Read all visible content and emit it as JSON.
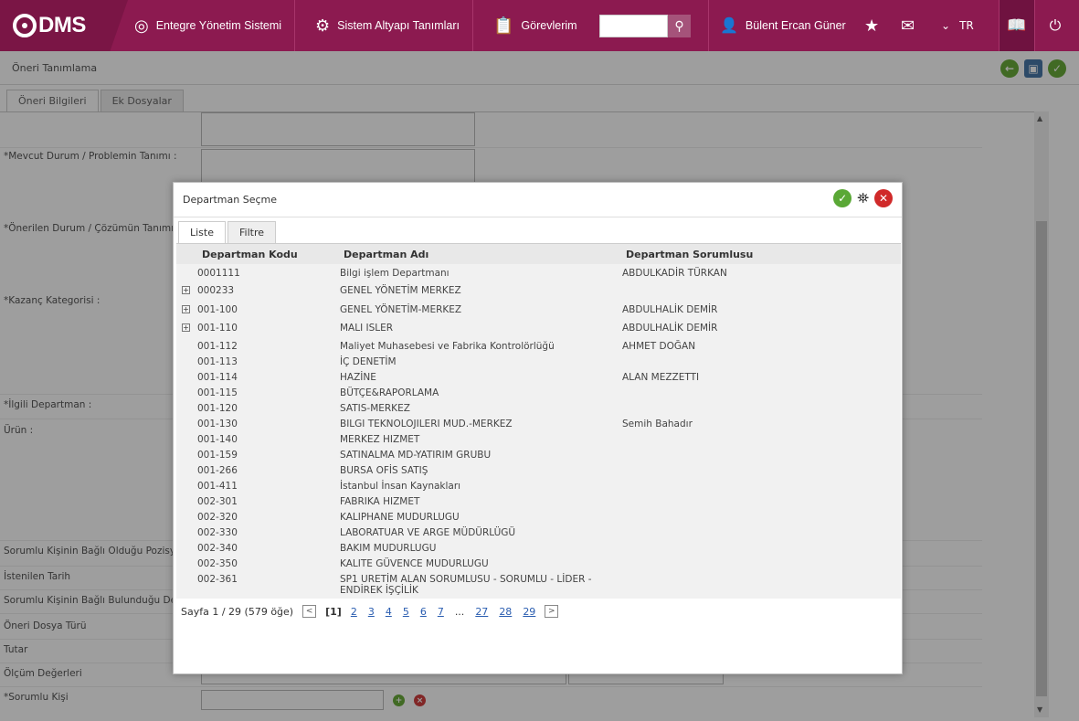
{
  "topbar": {
    "logo_text": "DMS",
    "nav": [
      {
        "label": "Entegre Yönetim Sistemi",
        "icon": "qdms-circle-icon"
      },
      {
        "label": "Sistem Altyapı Tanımları",
        "icon": "gear-icon"
      },
      {
        "label": "Görevlerim",
        "icon": "clipboard-icon"
      }
    ],
    "search_placeholder": "",
    "user_name": "Bülent Ercan Güner",
    "lang": "TR"
  },
  "page": {
    "title": "Öneri Tanımlama",
    "tabs": [
      "Öneri Bilgileri",
      "Ek Dosyalar"
    ],
    "fields": [
      "*Mevcut Durum / Problemin Tanımı :",
      "*Önerilen Durum / Çözümün Tanımı :",
      "*Kazanç Kategorisi :",
      "*İlgili Departman :",
      "Ürün :",
      "Sorumlu Kişinin Bağlı Olduğu Pozisyon",
      "İstenilen Tarih",
      "Sorumlu Kişinin Bağlı Bulunduğu Depa",
      "Öneri Dosya Türü",
      "Tutar",
      "Ölçüm Değerleri",
      "*Sorumlu Kişi"
    ]
  },
  "dialog": {
    "title": "Departman Seçme",
    "tabs": [
      "Liste",
      "Filtre"
    ],
    "columns": [
      "Departman Kodu",
      "Departman Adı",
      "Departman Sorumlusu"
    ],
    "rows": [
      {
        "code": "0001111",
        "name": "Bilgi işlem Departmanı",
        "owner": "ABDULKADİR TÜRKAN",
        "expandable": false
      },
      {
        "code": "000233",
        "name": "GENEL YÖNETİM MERKEZ",
        "owner": "",
        "expandable": true
      },
      {
        "code": "001-100",
        "name": "GENEL YÖNETİM-MERKEZ",
        "owner": "ABDULHALİK DEMİR",
        "expandable": true
      },
      {
        "code": "001-110",
        "name": "MALI ISLER",
        "owner": "ABDULHALİK DEMİR",
        "expandable": true
      },
      {
        "code": "001-112",
        "name": "Maliyet Muhasebesi ve Fabrika Kontrolörlüğü",
        "owner": "AHMET DOĞAN",
        "expandable": false
      },
      {
        "code": "001-113",
        "name": "İÇ DENETİM",
        "owner": "",
        "expandable": false
      },
      {
        "code": "001-114",
        "name": "HAZİNE",
        "owner": "ALAN MEZZETTI",
        "expandable": false
      },
      {
        "code": "001-115",
        "name": "BÜTÇE&RAPORLAMA",
        "owner": "",
        "expandable": false
      },
      {
        "code": "001-120",
        "name": "SATIS-MERKEZ",
        "owner": "",
        "expandable": false
      },
      {
        "code": "001-130",
        "name": "BILGI TEKNOLOJILERI MUD.-MERKEZ",
        "owner": "Semih Bahadır",
        "expandable": false
      },
      {
        "code": "001-140",
        "name": "MERKEZ HIZMET",
        "owner": "",
        "expandable": false
      },
      {
        "code": "001-159",
        "name": "SATINALMA MD-YATIRIM GRUBU",
        "owner": "",
        "expandable": false
      },
      {
        "code": "001-266",
        "name": "BURSA OFİS SATIŞ",
        "owner": "",
        "expandable": false
      },
      {
        "code": "001-411",
        "name": "İstanbul İnsan Kaynakları",
        "owner": "",
        "expandable": false
      },
      {
        "code": "002-301",
        "name": "FABRIKA HIZMET",
        "owner": "",
        "expandable": false
      },
      {
        "code": "002-320",
        "name": "KALIPHANE MUDURLUGU",
        "owner": "",
        "expandable": false
      },
      {
        "code": "002-330",
        "name": "LABORATUAR VE ARGE MÜDÜRLÜGÜ",
        "owner": "",
        "expandable": false
      },
      {
        "code": "002-340",
        "name": "BAKIM MUDURLUGU",
        "owner": "",
        "expandable": false
      },
      {
        "code": "002-350",
        "name": "KALITE GÜVENCE MUDURLUGU",
        "owner": "",
        "expandable": false
      },
      {
        "code": "002-361",
        "name": "SP1 URETİM ALAN SORUMLUSU - SORUMLU - LİDER - ENDİREK İŞÇİLİK",
        "owner": "",
        "expandable": false
      }
    ],
    "pager": {
      "summary": "Sayfa 1 / 29 (579 öğe)",
      "current": "[1]",
      "pages": [
        "2",
        "3",
        "4",
        "5",
        "6",
        "7",
        "...",
        "27",
        "28",
        "29"
      ]
    }
  }
}
